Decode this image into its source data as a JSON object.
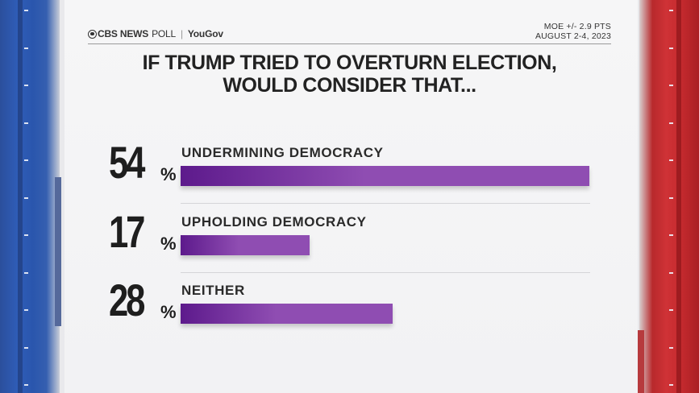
{
  "header": {
    "network": "CBS NEWS",
    "poll": "POLL",
    "partner": "YouGov",
    "moe": "MOE +/- 2.9 PTS",
    "dates": "AUGUST 2-4, 2023"
  },
  "chart_data": {
    "type": "bar",
    "orientation": "horizontal",
    "title": "IF TRUMP TRIED TO OVERTURN ELECTION, WOULD CONSIDER THAT...",
    "title_lines": [
      "IF TRUMP TRIED TO OVERTURN ELECTION,",
      "WOULD CONSIDER THAT..."
    ],
    "categories": [
      "UNDERMINING DEMOCRACY",
      "UPHOLDING DEMOCRACY",
      "NEITHER"
    ],
    "values": [
      54,
      17,
      28
    ],
    "value_suffix": "%",
    "xlim": [
      0,
      54
    ],
    "bar_color": "#8f4db2",
    "bar_color_start": "#5d1a8c"
  }
}
